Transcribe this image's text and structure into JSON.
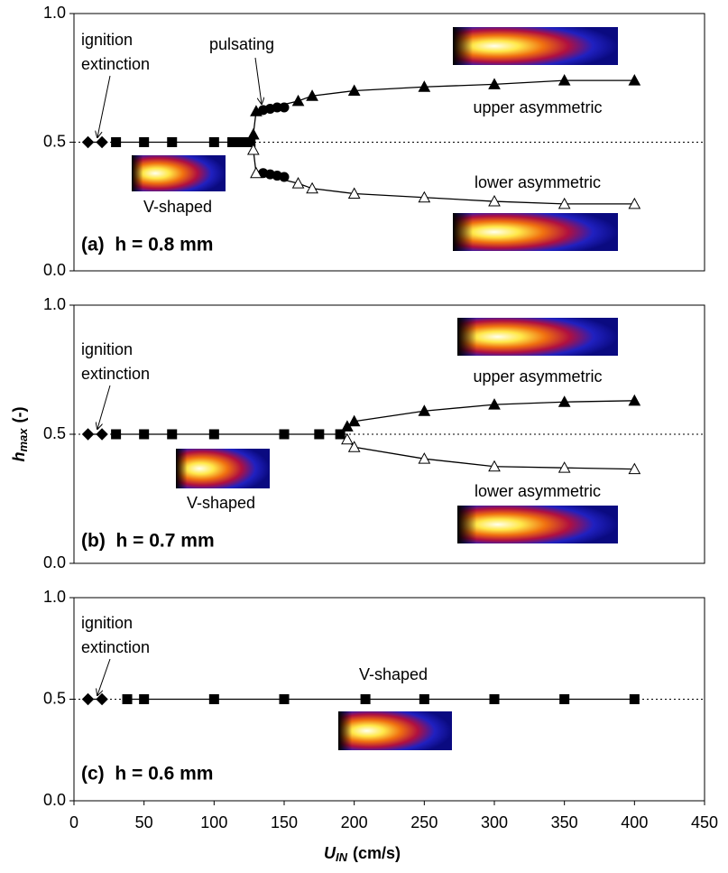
{
  "chart_data": [
    {
      "type": "scatter",
      "panel_label": "(a)  h = 0.8 mm",
      "annotations": [
        "ignition",
        "extinction",
        "pulsating",
        "upper asymmetric",
        "lower asymmetric",
        "V-shaped"
      ],
      "xlim": [
        0,
        450
      ],
      "ylim": [
        0,
        1
      ],
      "yticks": [
        {
          "value": 0,
          "label": "0.0"
        },
        {
          "value": 0.5,
          "label": "0.5"
        },
        {
          "value": 1,
          "label": "1.0"
        }
      ],
      "hline": 0.5,
      "series": [
        {
          "marker": "diamond",
          "color": "#000000",
          "fill": "#000000",
          "line": true,
          "x": [
            10,
            20
          ],
          "values": [
            0.5,
            0.5
          ]
        },
        {
          "marker": "square",
          "color": "#000000",
          "fill": "#000000",
          "line": true,
          "x": [
            30,
            50,
            70,
            100,
            113,
            118,
            122,
            126
          ],
          "values": [
            0.5,
            0.5,
            0.5,
            0.5,
            0.5,
            0.5,
            0.5,
            0.5
          ]
        },
        {
          "marker": "triangle",
          "color": "#000000",
          "fill": "#000000",
          "line": true,
          "x": [
            128,
            130,
            160,
            170,
            200,
            250,
            300,
            350,
            400
          ],
          "values": [
            0.53,
            0.62,
            0.66,
            0.68,
            0.7,
            0.715,
            0.725,
            0.74,
            0.74
          ]
        },
        {
          "marker": "circle",
          "color": "#000000",
          "fill": "#000000",
          "line": false,
          "x": [
            135,
            140,
            145,
            150,
            135,
            140,
            145,
            150
          ],
          "values": [
            0.625,
            0.63,
            0.635,
            0.635,
            0.38,
            0.375,
            0.37,
            0.365
          ]
        },
        {
          "marker": "triangle",
          "color": "#000000",
          "fill": "#ffffff",
          "line": true,
          "x": [
            128,
            130,
            160,
            170,
            200,
            250,
            300,
            350,
            400
          ],
          "values": [
            0.47,
            0.38,
            0.34,
            0.32,
            0.3,
            0.285,
            0.27,
            0.26,
            0.26
          ]
        }
      ]
    },
    {
      "type": "scatter",
      "panel_label": "(b)  h = 0.7 mm",
      "annotations": [
        "ignition",
        "extinction",
        "upper asymmetric",
        "lower asymmetric",
        "V-shaped"
      ],
      "ylabel": {
        "symbol": "h",
        "subscript": "max",
        "unit": "(-)"
      },
      "xlim": [
        0,
        450
      ],
      "ylim": [
        0,
        1
      ],
      "yticks": [
        {
          "value": 0,
          "label": "0.0"
        },
        {
          "value": 0.5,
          "label": "0.5"
        },
        {
          "value": 1,
          "label": "1.0"
        }
      ],
      "hline": 0.5,
      "series": [
        {
          "marker": "diamond",
          "color": "#000000",
          "fill": "#000000",
          "line": true,
          "x": [
            10,
            20
          ],
          "values": [
            0.5,
            0.5
          ]
        },
        {
          "marker": "square",
          "color": "#000000",
          "fill": "#000000",
          "line": true,
          "x": [
            30,
            50,
            70,
            100,
            150,
            175,
            190
          ],
          "values": [
            0.5,
            0.5,
            0.5,
            0.5,
            0.5,
            0.5,
            0.5
          ]
        },
        {
          "marker": "triangle",
          "color": "#000000",
          "fill": "#000000",
          "line": true,
          "x": [
            195,
            200,
            250,
            300,
            350,
            400
          ],
          "values": [
            0.53,
            0.55,
            0.59,
            0.615,
            0.625,
            0.63
          ]
        },
        {
          "marker": "triangle",
          "color": "#000000",
          "fill": "#ffffff",
          "line": true,
          "x": [
            195,
            200,
            250,
            300,
            350,
            400
          ],
          "values": [
            0.48,
            0.45,
            0.405,
            0.375,
            0.37,
            0.365
          ]
        }
      ]
    },
    {
      "type": "scatter",
      "panel_label": "(c)  h = 0.6 mm",
      "annotations": [
        "ignition",
        "extinction",
        "V-shaped"
      ],
      "xlabel": {
        "symbol": "U",
        "subscript": "IN",
        "unit": "(cm/s)"
      },
      "xlim": [
        0,
        450
      ],
      "ylim": [
        0,
        1
      ],
      "xticks": [
        0,
        50,
        100,
        150,
        200,
        250,
        300,
        350,
        400,
        450
      ],
      "yticks": [
        {
          "value": 0,
          "label": "0.0"
        },
        {
          "value": 0.5,
          "label": "0.5"
        },
        {
          "value": 1,
          "label": "1.0"
        }
      ],
      "hline": 0.5,
      "series": [
        {
          "marker": "diamond",
          "color": "#000000",
          "fill": "#000000",
          "line": true,
          "x": [
            10,
            20
          ],
          "values": [
            0.5,
            0.5
          ]
        },
        {
          "marker": "square",
          "color": "#000000",
          "fill": "#000000",
          "line": true,
          "x": [
            38,
            50,
            100,
            150,
            208,
            250,
            300,
            350,
            400
          ],
          "values": [
            0.5,
            0.5,
            0.5,
            0.5,
            0.5,
            0.5,
            0.5,
            0.5,
            0.5
          ]
        }
      ]
    }
  ]
}
